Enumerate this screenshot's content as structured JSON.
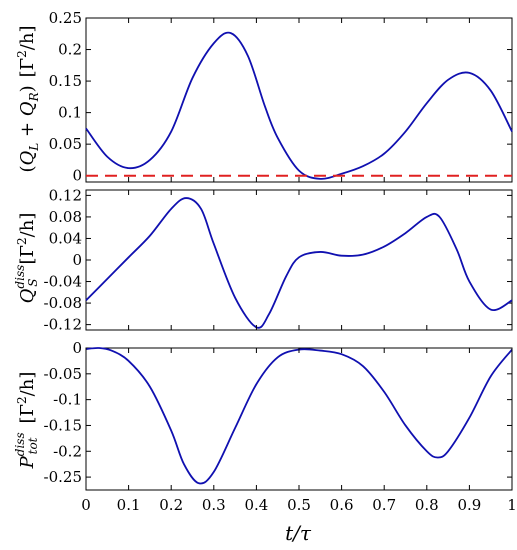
{
  "chart_data": [
    {
      "type": "line",
      "ylabel": "(Q̇_L + Q̇_R) [Γ²/h]",
      "ylabel_parts": {
        "open": "(",
        "q": "Q",
        "sub_l": "L",
        "plus": " + ",
        "sub_r": "R",
        "close": ")",
        "unit_open": "[Γ",
        "unit_exp": "2",
        "unit_close": "/h]"
      },
      "ylim": [
        -0.01,
        0.25
      ],
      "yticks": [
        "0",
        "0.05",
        "0.1",
        "0.15",
        "0.2",
        "0.25"
      ],
      "ytick_values": [
        0,
        0.05,
        0.1,
        0.15,
        0.2,
        0.25
      ],
      "series": [
        {
          "x": [
            0,
            0.05,
            0.1,
            0.15,
            0.2,
            0.25,
            0.3,
            0.34,
            0.38,
            0.42,
            0.45,
            0.5,
            0.55,
            0.6,
            0.65,
            0.7,
            0.75,
            0.8,
            0.85,
            0.9,
            0.95,
            1.0
          ],
          "y": [
            0.075,
            0.03,
            0.012,
            0.025,
            0.07,
            0.155,
            0.21,
            0.226,
            0.19,
            0.11,
            0.06,
            0.008,
            -0.005,
            0.003,
            0.015,
            0.035,
            0.07,
            0.115,
            0.152,
            0.163,
            0.135,
            0.07
          ],
          "color": "#1010b0"
        },
        {
          "x": [
            0,
            1
          ],
          "y": [
            0,
            0
          ],
          "color": "#e02020",
          "dashed": true
        }
      ]
    },
    {
      "type": "line",
      "ylabel": "Q̇_S^diss [Γ²/h]",
      "ylabel_parts": {
        "q": "Q",
        "sup": "diss",
        "sub": "S",
        "unit_open": "[Γ",
        "unit_exp": "2",
        "unit_close": "/h]"
      },
      "ylim": [
        -0.13,
        0.13
      ],
      "yticks": [
        "-0.12",
        "-0.08",
        "-0.04",
        "0",
        "0.04",
        "0.08",
        "0.12"
      ],
      "ytick_values": [
        -0.12,
        -0.08,
        -0.04,
        0,
        0.04,
        0.08,
        0.12
      ],
      "series": [
        {
          "x": [
            0,
            0.05,
            0.1,
            0.15,
            0.2,
            0.235,
            0.27,
            0.3,
            0.35,
            0.4,
            0.43,
            0.47,
            0.5,
            0.55,
            0.6,
            0.65,
            0.7,
            0.75,
            0.8,
            0.83,
            0.87,
            0.9,
            0.95,
            1.0
          ],
          "y": [
            -0.075,
            -0.035,
            0.005,
            0.045,
            0.095,
            0.115,
            0.095,
            0.03,
            -0.07,
            -0.125,
            -0.1,
            -0.03,
            0.005,
            0.015,
            0.008,
            0.01,
            0.025,
            0.05,
            0.08,
            0.08,
            0.02,
            -0.04,
            -0.092,
            -0.075
          ],
          "color": "#1010b0"
        }
      ]
    },
    {
      "type": "line",
      "ylabel": "P_tot^diss [Γ²/h]",
      "ylabel_parts": {
        "p": "P",
        "sup": "diss",
        "sub": "tot",
        "unit_open": "[Γ",
        "unit_exp": "2",
        "unit_close": "/h]"
      },
      "ylim": [
        -0.275,
        0
      ],
      "yticks": [
        "-0.25",
        "-0.2",
        "-0.15",
        "-0.1",
        "-0.05",
        "0"
      ],
      "ytick_values": [
        -0.25,
        -0.2,
        -0.15,
        -0.1,
        -0.05,
        0
      ],
      "xticks": [
        "0",
        "0.1",
        "0.2",
        "0.3",
        "0.4",
        "0.5",
        "0.6",
        "0.7",
        "0.8",
        "0.9",
        "1"
      ],
      "xtick_values": [
        0,
        0.1,
        0.2,
        0.3,
        0.4,
        0.5,
        0.6,
        0.7,
        0.8,
        0.9,
        1
      ],
      "xlabel": "t/τ",
      "series": [
        {
          "x": [
            0,
            0.03,
            0.06,
            0.1,
            0.15,
            0.2,
            0.23,
            0.265,
            0.3,
            0.35,
            0.4,
            0.45,
            0.5,
            0.55,
            0.6,
            0.65,
            0.7,
            0.75,
            0.8,
            0.825,
            0.85,
            0.9,
            0.95,
            1.0
          ],
          "y": [
            -0.002,
            0,
            -0.005,
            -0.025,
            -0.075,
            -0.16,
            -0.225,
            -0.262,
            -0.24,
            -0.155,
            -0.07,
            -0.018,
            -0.003,
            -0.005,
            -0.012,
            -0.035,
            -0.085,
            -0.15,
            -0.2,
            -0.212,
            -0.2,
            -0.135,
            -0.055,
            -0.003
          ],
          "color": "#1010b0"
        }
      ]
    }
  ]
}
